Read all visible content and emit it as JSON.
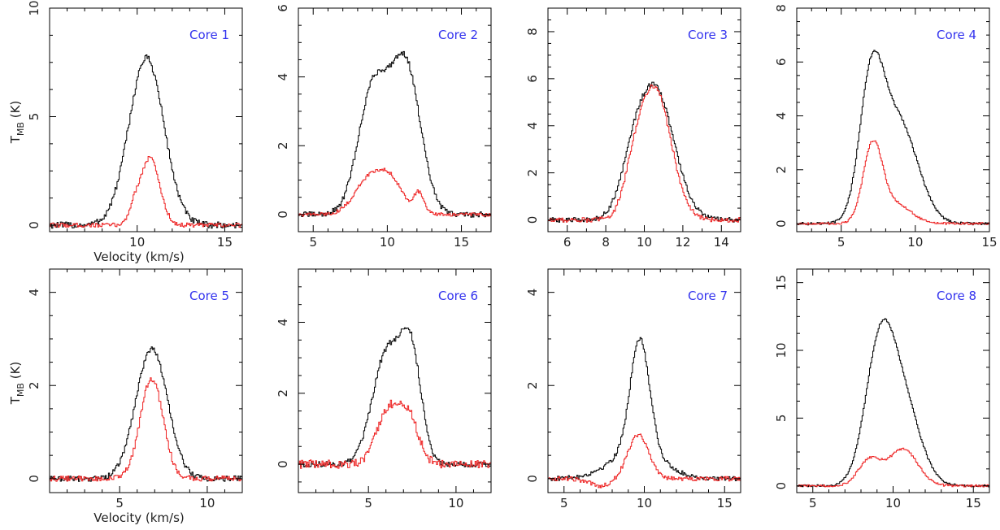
{
  "chart_data": [
    {
      "type": "line",
      "title": "Core 1",
      "xlim": [
        5,
        16
      ],
      "ylim": [
        -0.3,
        10
      ],
      "xticks": [
        10,
        15
      ],
      "yticks": [
        0,
        5,
        10
      ],
      "xlabel": "Velocity (km/s)",
      "ylabel": "T_MB (K)",
      "series": [
        {
          "name": "black",
          "color": "#000000",
          "noise": 0.15,
          "components": [
            [
              10.5,
              1.0,
              7.7
            ]
          ]
        },
        {
          "name": "red",
          "color": "#ee2222",
          "noise": 0.1,
          "components": [
            [
              10.7,
              0.55,
              3.1
            ],
            [
              9.8,
              0.3,
              0.6
            ]
          ]
        }
      ]
    },
    {
      "type": "line",
      "title": "Core 2",
      "xlim": [
        4,
        17
      ],
      "ylim": [
        -0.5,
        6
      ],
      "xticks": [
        5,
        10,
        15
      ],
      "yticks": [
        0,
        2,
        4,
        6
      ],
      "xlabel": "",
      "ylabel": "",
      "series": [
        {
          "name": "black",
          "color": "#000000",
          "noise": 0.08,
          "components": [
            [
              9.0,
              1.0,
              3.6
            ],
            [
              11.2,
              1.0,
              4.3
            ]
          ]
        },
        {
          "name": "red",
          "color": "#ee2222",
          "noise": 0.05,
          "components": [
            [
              8.8,
              1.0,
              1.05
            ],
            [
              10.3,
              0.8,
              0.8
            ],
            [
              12.1,
              0.35,
              0.6
            ]
          ]
        }
      ]
    },
    {
      "type": "line",
      "title": "Core 3",
      "xlim": [
        5,
        15
      ],
      "ylim": [
        -0.5,
        9
      ],
      "xticks": [
        6,
        8,
        10,
        12,
        14
      ],
      "yticks": [
        0,
        2,
        4,
        6,
        8
      ],
      "xlabel": "",
      "ylabel": "",
      "series": [
        {
          "name": "black",
          "color": "#000000",
          "noise": 0.1,
          "components": [
            [
              10.5,
              1.0,
              5.6
            ],
            [
              9.3,
              0.6,
              1.0
            ]
          ]
        },
        {
          "name": "red",
          "color": "#ee2222",
          "noise": 0.1,
          "components": [
            [
              10.5,
              0.85,
              5.6
            ],
            [
              9.4,
              0.5,
              1.0
            ]
          ]
        }
      ]
    },
    {
      "type": "line",
      "title": "Core 4",
      "xlim": [
        2,
        15
      ],
      "ylim": [
        -0.3,
        8
      ],
      "xticks": [
        5,
        10,
        15
      ],
      "yticks": [
        0,
        2,
        4,
        6,
        8
      ],
      "xlabel": "",
      "ylabel": "",
      "series": [
        {
          "name": "black",
          "color": "#000000",
          "noise": 0.05,
          "components": [
            [
              7.0,
              0.8,
              4.8
            ],
            [
              8.8,
              1.3,
              3.8
            ]
          ]
        },
        {
          "name": "red",
          "color": "#ee2222",
          "noise": 0.04,
          "components": [
            [
              7.1,
              0.65,
              2.9
            ],
            [
              8.7,
              1.0,
              0.7
            ]
          ]
        }
      ]
    },
    {
      "type": "line",
      "title": "Core 5",
      "xlim": [
        1,
        12
      ],
      "ylim": [
        -0.3,
        4.5
      ],
      "xticks": [
        5,
        10
      ],
      "yticks": [
        0,
        2,
        4
      ],
      "xlabel": "Velocity (km/s)",
      "ylabel": "T_MB (K)",
      "series": [
        {
          "name": "black",
          "color": "#000000",
          "noise": 0.06,
          "components": [
            [
              6.8,
              0.9,
              2.8
            ]
          ]
        },
        {
          "name": "red",
          "color": "#ee2222",
          "noise": 0.06,
          "components": [
            [
              6.8,
              0.65,
              2.15
            ]
          ]
        }
      ]
    },
    {
      "type": "line",
      "title": "Core 6",
      "xlim": [
        1,
        12
      ],
      "ylim": [
        -0.8,
        5.5
      ],
      "xticks": [
        5,
        10
      ],
      "yticks": [
        0,
        2,
        4
      ],
      "xlabel": "",
      "ylabel": "",
      "series": [
        {
          "name": "black",
          "color": "#000000",
          "noise": 0.08,
          "components": [
            [
              6.0,
              0.8,
              3.1
            ],
            [
              7.4,
              0.6,
              3.0
            ]
          ]
        },
        {
          "name": "red",
          "color": "#ee2222",
          "noise": 0.12,
          "components": [
            [
              6.0,
              0.6,
              1.4
            ],
            [
              7.2,
              0.6,
              1.4
            ]
          ]
        }
      ]
    },
    {
      "type": "line",
      "title": "Core 7",
      "xlim": [
        4,
        16
      ],
      "ylim": [
        -0.3,
        4.5
      ],
      "xticks": [
        5,
        10,
        15
      ],
      "yticks": [
        0,
        2,
        4
      ],
      "xlabel": "",
      "ylabel": "",
      "series": [
        {
          "name": "black",
          "color": "#000000",
          "noise": 0.05,
          "components": [
            [
              9.7,
              0.6,
              2.4
            ],
            [
              9.5,
              1.6,
              0.6
            ]
          ]
        },
        {
          "name": "red",
          "color": "#ee2222",
          "noise": 0.05,
          "components": [
            [
              9.6,
              0.65,
              0.95
            ],
            [
              7.2,
              0.7,
              -0.15
            ]
          ]
        }
      ]
    },
    {
      "type": "line",
      "title": "Core 8",
      "xlim": [
        4,
        16
      ],
      "ylim": [
        -0.5,
        16
      ],
      "xticks": [
        5,
        10,
        15
      ],
      "yticks": [
        0,
        5,
        10,
        15
      ],
      "xlabel": "",
      "ylabel": "",
      "series": [
        {
          "name": "black",
          "color": "#000000",
          "noise": 0.08,
          "components": [
            [
              9.1,
              0.9,
              9.0
            ],
            [
              10.5,
              1.1,
              6.2
            ]
          ]
        },
        {
          "name": "red",
          "color": "#ee2222",
          "noise": 0.08,
          "components": [
            [
              8.5,
              0.7,
              1.9
            ],
            [
              10.6,
              0.9,
              2.7
            ]
          ]
        }
      ]
    }
  ]
}
